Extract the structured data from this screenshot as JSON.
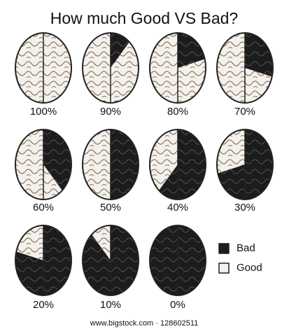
{
  "chart_data": {
    "type": "pie",
    "title": "How much Good VS Bad?",
    "values": [
      100,
      90,
      80,
      70,
      60,
      50,
      40,
      30,
      20,
      10,
      0
    ],
    "value_labels": [
      "100%",
      "90%",
      "80%",
      "70%",
      "60%",
      "50%",
      "40%",
      "30%",
      "20%",
      "10%",
      "0%"
    ],
    "series": [
      {
        "name": "Bad",
        "color": "#1c1c1c"
      },
      {
        "name": "Good",
        "color": "#f4f1ec"
      }
    ],
    "footer": "www.bigstock.com · 128602511"
  }
}
